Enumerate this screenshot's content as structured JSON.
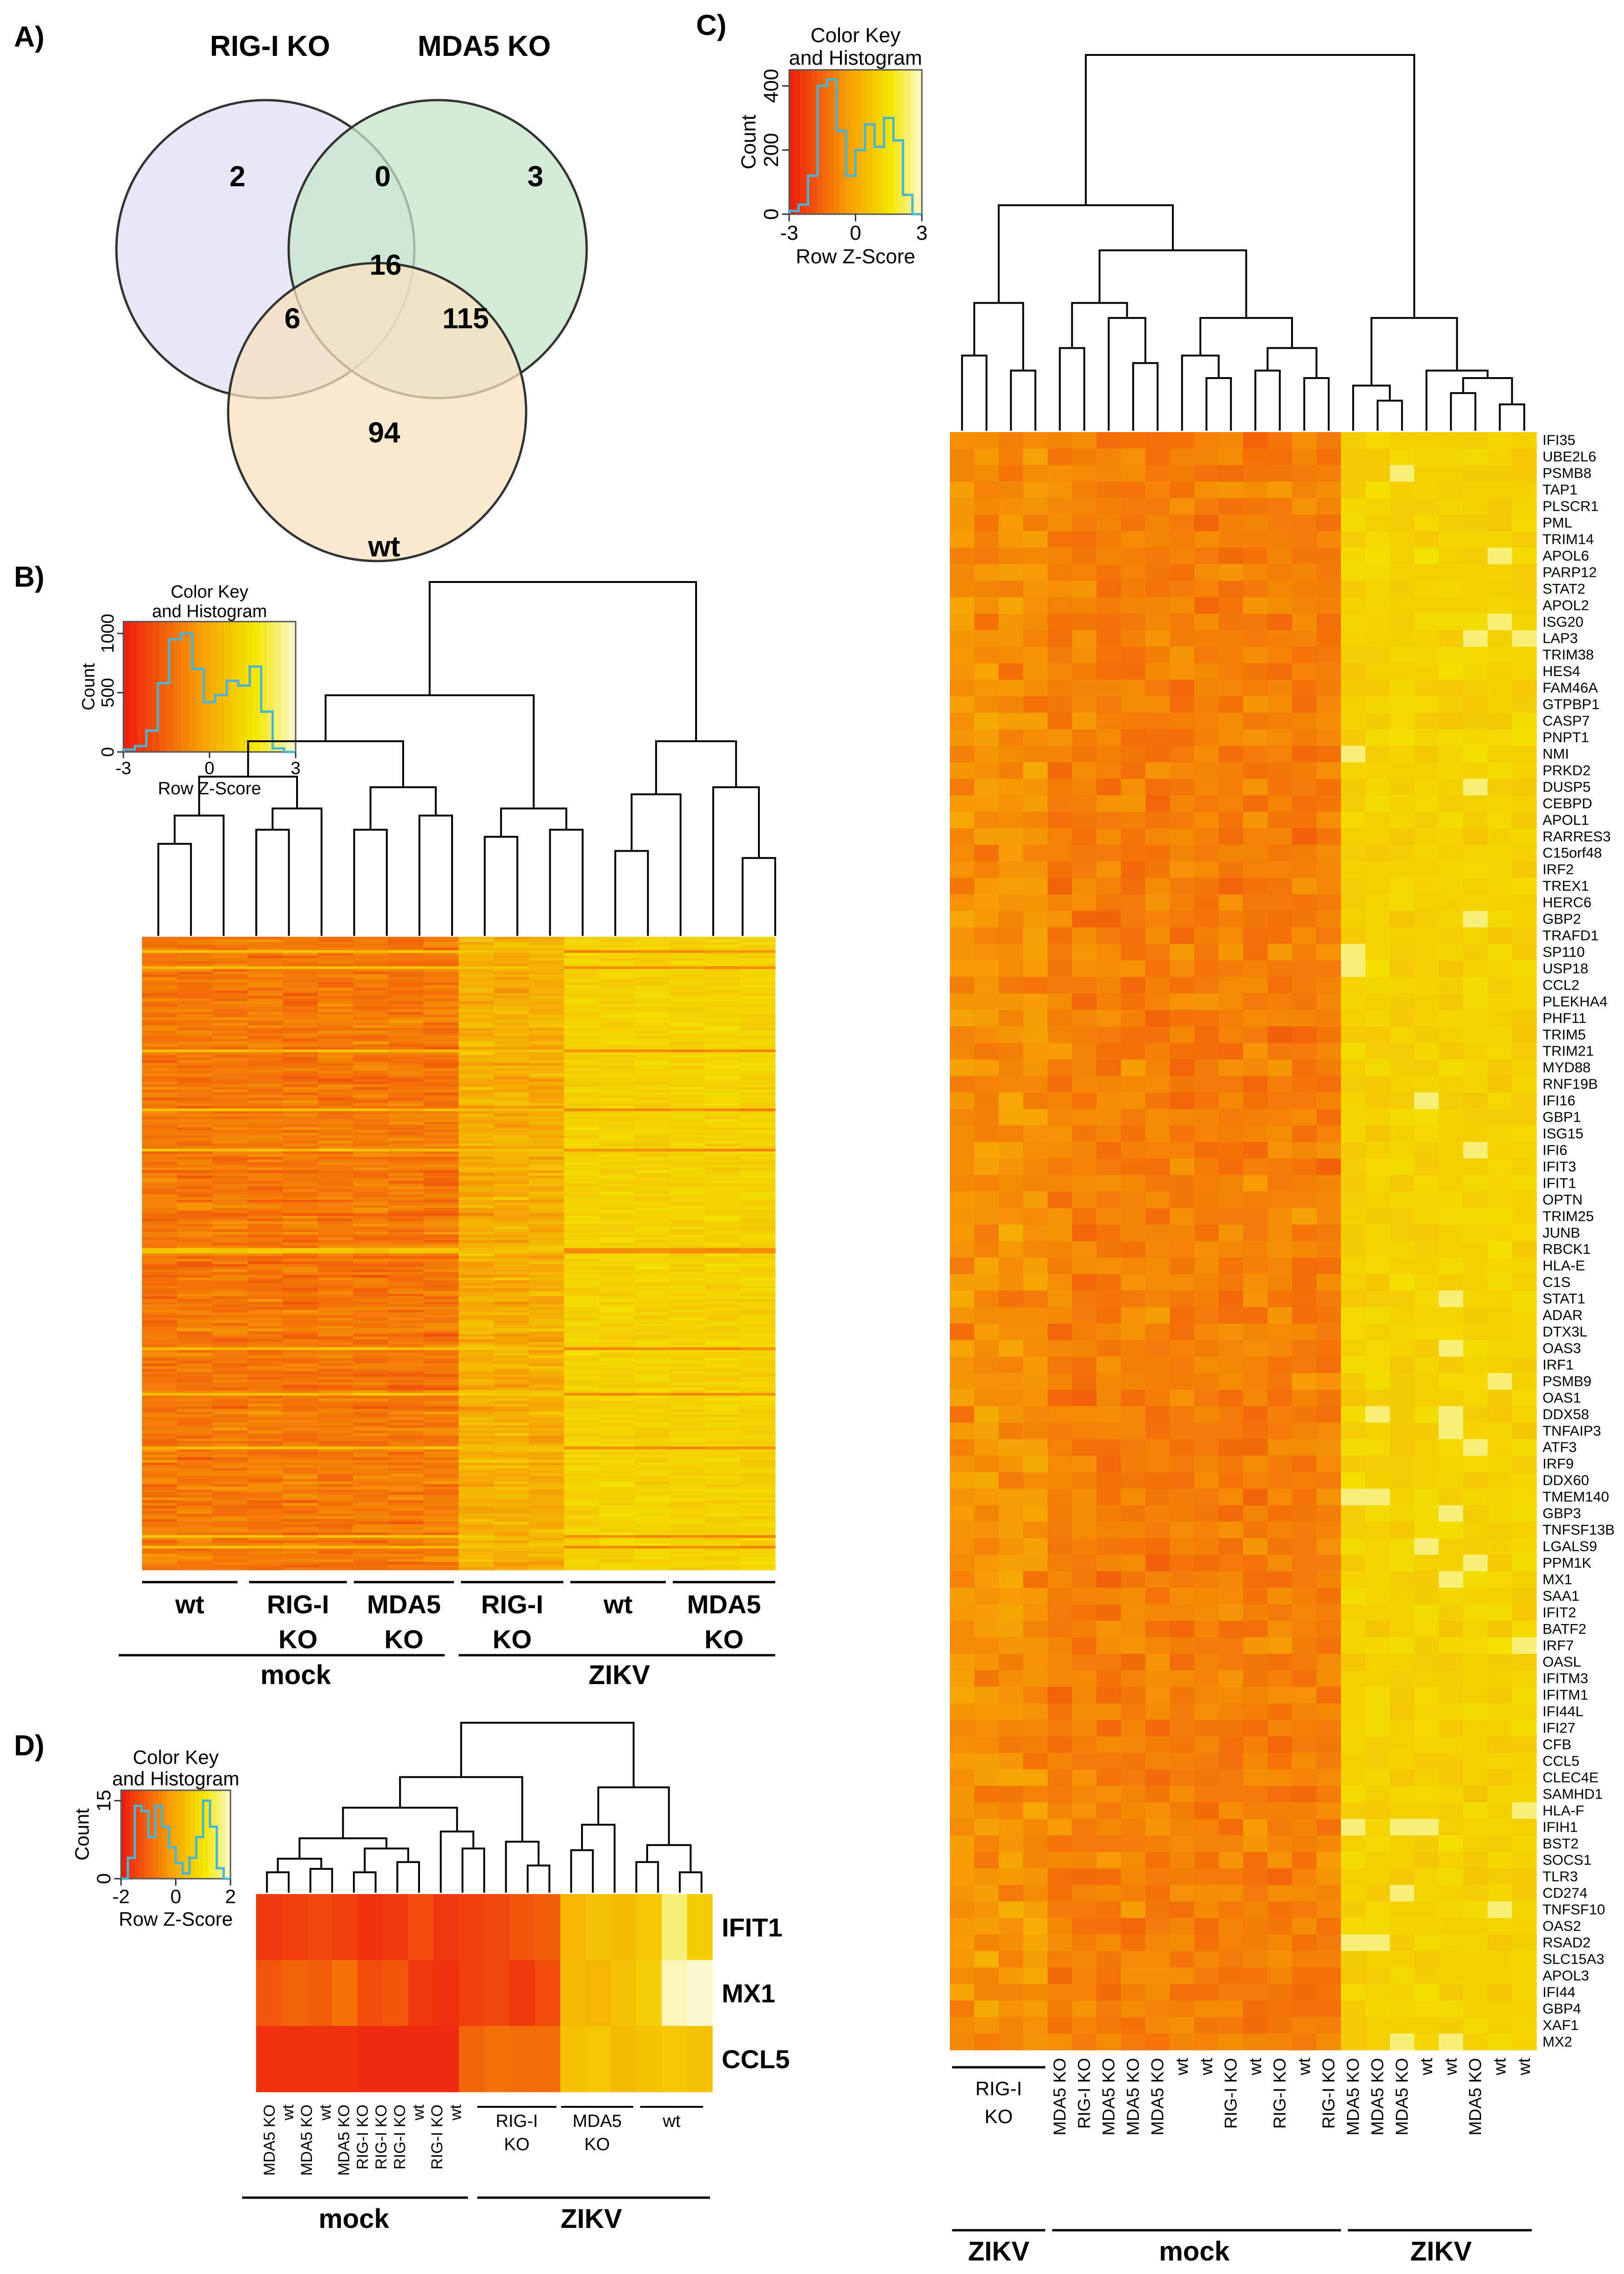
{
  "figure": {
    "panel_labels": [
      "A)",
      "B)",
      "C)",
      "D)"
    ],
    "colors": {
      "venn_rig": "#dde0f2",
      "venn_mda": "#c6e5c8",
      "venn_wt": "#f8e2bd",
      "hist_line": "#49b5d6",
      "heat_low": "#ee1b10",
      "heat_mid": "#f59a05",
      "heat_high": "#f3e800",
      "heat_top": "#fbf8cf"
    }
  },
  "chart_data": [
    {
      "panel": "A)",
      "type": "venn",
      "sets": [
        "RIG-I KO",
        "MDA5 KO",
        "wt"
      ],
      "regions": {
        "rig_only": 2,
        "rig_mda": 0,
        "mda_only": 3,
        "all_three": 16,
        "rig_wt": 6,
        "mda_wt": 115,
        "wt_only": 94
      }
    },
    {
      "panel": "B)",
      "type": "heatmap",
      "key": {
        "title": [
          "Color Key",
          "and Histogram"
        ],
        "ylabel": "Count",
        "xlabel": "Row Z-Score",
        "xticks": [
          "-3",
          "0",
          "3"
        ],
        "yticks": [
          "0",
          "500",
          "1000"
        ],
        "xrange": [
          -3,
          3
        ],
        "yrange": [
          0,
          1100
        ],
        "histogram": [
          20,
          50,
          180,
          580,
          950,
          1000,
          700,
          420,
          480,
          600,
          560,
          720,
          340,
          30,
          0
        ]
      },
      "sample_groups": [
        "wt",
        "RIG-I KO",
        "MDA5 KO",
        "RIG-I KO",
        "wt",
        "MDA5 KO"
      ],
      "group_labels": [
        [
          "wt"
        ],
        [
          "RIG-I",
          "KO"
        ],
        [
          "MDA5",
          "KO"
        ],
        [
          "RIG-I",
          "KO"
        ],
        [
          "wt"
        ],
        [
          "MDA5",
          "KO"
        ]
      ],
      "conditions": [
        "mock",
        "ZIKV"
      ],
      "columns": 18,
      "rows": 236
    },
    {
      "panel": "C)",
      "type": "heatmap",
      "key": {
        "title": [
          "Color Key",
          "and Histogram"
        ],
        "ylabel": "Count",
        "xlabel": "Row Z-Score",
        "xticks": [
          "-3",
          "0",
          "3"
        ],
        "yticks": [
          "0",
          "200",
          "400"
        ],
        "xrange": [
          -3,
          3
        ],
        "yrange": [
          0,
          450
        ],
        "histogram": [
          10,
          30,
          120,
          400,
          420,
          260,
          120,
          200,
          280,
          210,
          300,
          230,
          60,
          0
        ]
      },
      "genes": [
        "IFI35",
        "UBE2L6",
        "PSMB8",
        "TAP1",
        "PLSCR1",
        "PML",
        "TRIM14",
        "APOL6",
        "PARP12",
        "STAT2",
        "APOL2",
        "ISG20",
        "LAP3",
        "TRIM38",
        "HES4",
        "FAM46A",
        "GTPBP1",
        "CASP7",
        "PNPT1",
        "NMI",
        "PRKD2",
        "DUSP5",
        "CEBPD",
        "APOL1",
        "RARRES3",
        "C15orf48",
        "IRF2",
        "TREX1",
        "HERC6",
        "GBP2",
        "TRAFD1",
        "SP110",
        "USP18",
        "CCL2",
        "PLEKHA4",
        "PHF11",
        "TRIM5",
        "TRIM21",
        "MYD88",
        "RNF19B",
        "IFI16",
        "GBP1",
        "ISG15",
        "IFI6",
        "IFIT3",
        "IFIT1",
        "OPTN",
        "TRIM25",
        "JUNB",
        "RBCK1",
        "HLA-E",
        "C1S",
        "STAT1",
        "ADAR",
        "DTX3L",
        "OAS3",
        "IRF1",
        "PSMB9",
        "OAS1",
        "DDX58",
        "TNFAIP3",
        "ATF3",
        "IRF9",
        "DDX60",
        "TMEM140",
        "GBP3",
        "TNFSF13B",
        "LGALS9",
        "PPM1K",
        "MX1",
        "SAA1",
        "IFIT2",
        "BATF2",
        "IRF7",
        "OASL",
        "IFITM3",
        "IFITM1",
        "IFI44L",
        "IFI27",
        "CFB",
        "CCL5",
        "CLEC4E",
        "SAMHD1",
        "HLA-F",
        "IFIH1",
        "BST2",
        "SOCS1",
        "TLR3",
        "CD274",
        "TNFSF10",
        "OAS2",
        "RSAD2",
        "SLC15A3",
        "APOL3",
        "IFI44",
        "GBP4",
        "XAF1",
        "MX2"
      ],
      "sample_labels": [
        "MDA5 KO",
        "RIG-I KO",
        "MDA5 KO",
        "MDA5 KO",
        "MDA5 KO",
        "wt",
        "wt",
        "RIG-I KO",
        "wt",
        "RIG-I KO",
        "wt",
        "RIG-I KO",
        "MDA5 KO",
        "MDA5 KO",
        "MDA5 KO",
        "wt",
        "wt",
        "MDA5 KO",
        "wt",
        "wt"
      ],
      "group_labels": [
        {
          "text": [
            "RIG-I",
            "KO"
          ]
        }
      ],
      "conditions": [
        "ZIKV",
        "mock",
        "ZIKV"
      ],
      "columns": 24
    },
    {
      "panel": "D)",
      "type": "heatmap",
      "key": {
        "title": [
          "Color Key",
          "and Histogram"
        ],
        "ylabel": "Count",
        "xlabel": "Row Z-Score",
        "xticks": [
          "-2",
          "0",
          "2"
        ],
        "yticks": [
          "0",
          "15"
        ],
        "xrange": [
          -2,
          2
        ],
        "yrange": [
          0,
          17
        ],
        "histogram": [
          0,
          4,
          14,
          13,
          8,
          14,
          10,
          6,
          3,
          1,
          4,
          8,
          15,
          10,
          2,
          0
        ]
      },
      "genes": [
        "IFIT1",
        "MX1",
        "CCL5"
      ],
      "sample_labels": [
        "MDA5 KO",
        "wt",
        "MDA5 KO",
        "wt",
        "MDA5 KO",
        "RIG-I KO",
        "RIG-I KO",
        "RIG-I KO",
        "wt",
        "RIG-I KO",
        "wt"
      ],
      "group_labels": [
        [
          "RIG-I",
          "KO"
        ],
        [
          "MDA5",
          "KO"
        ],
        [
          "wt"
        ]
      ],
      "conditions": [
        "mock",
        "ZIKV"
      ],
      "columns": 18,
      "values": [
        [
          -1.6,
          -1.5,
          -1.4,
          -1.5,
          -1.7,
          -1.6,
          -1.3,
          -1.6,
          -1.5,
          -1.4,
          -1.2,
          -1.1,
          0.2,
          0.4,
          0.3,
          0.5,
          1.6,
          0.6
        ],
        [
          -1.2,
          -1.0,
          -1.1,
          -0.8,
          -1.3,
          -1.2,
          -1.6,
          -1.7,
          -1.5,
          -1.4,
          -1.6,
          -1.3,
          0.3,
          0.2,
          0.4,
          0.6,
          1.9,
          2.0
        ],
        [
          -1.7,
          -1.7,
          -1.7,
          -1.7,
          -1.8,
          -1.8,
          -1.8,
          -1.8,
          -1.0,
          -0.8,
          -0.9,
          -0.9,
          0.4,
          0.5,
          0.3,
          0.4,
          0.5,
          0.4
        ]
      ]
    }
  ]
}
